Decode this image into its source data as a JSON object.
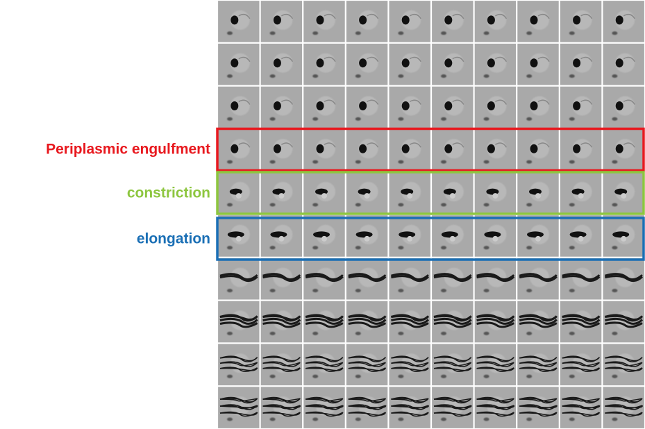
{
  "figure": {
    "labels": [
      {
        "text": "Periplasmic engulfment",
        "color": "#e8191f"
      },
      {
        "text": "constriction",
        "color": "#8dc63f"
      },
      {
        "text": "elongation",
        "color": "#1a6fb5"
      }
    ]
  }
}
